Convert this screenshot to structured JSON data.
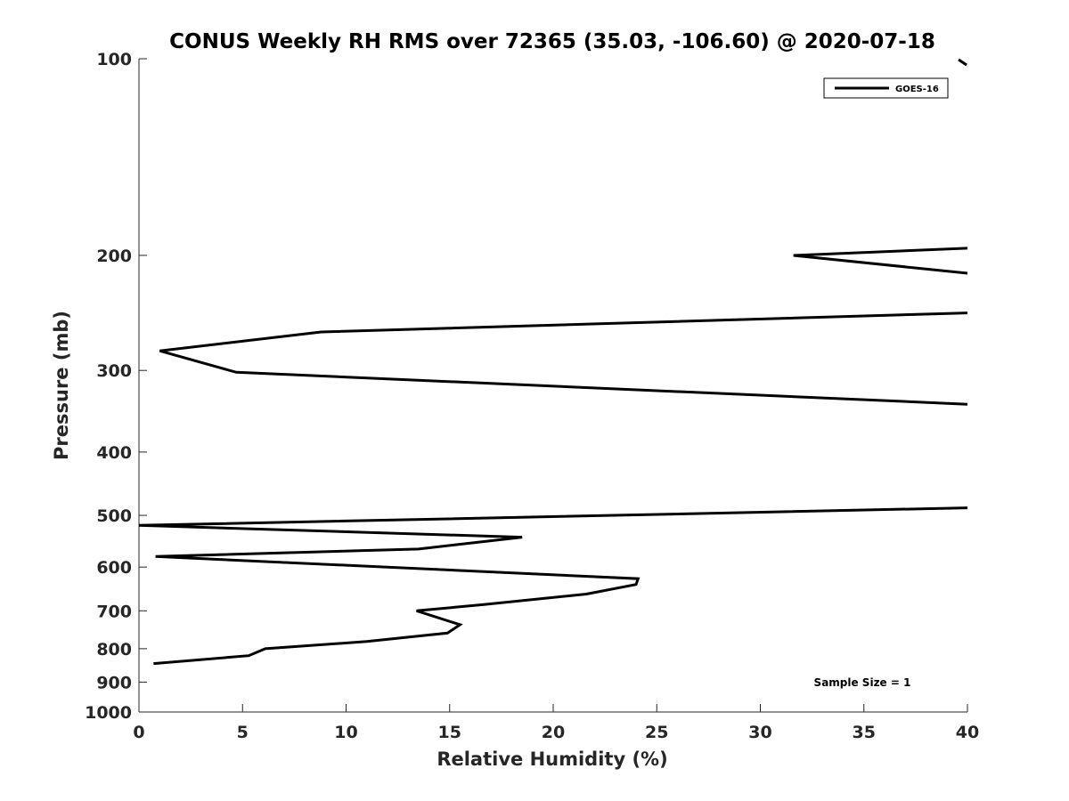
{
  "chart_data": {
    "type": "line",
    "title": "CONUS Weekly RH RMS over 72365 (35.03, -106.60) @ 2020-07-18",
    "xlabel": "Relative Humidity (%)",
    "ylabel": "Pressure (mb)",
    "xlim": [
      0,
      40
    ],
    "ylim": [
      100,
      1000
    ],
    "y_scale": "log",
    "y_reversed": true,
    "x_ticks": [
      0,
      5,
      10,
      15,
      20,
      25,
      30,
      35,
      40
    ],
    "y_ticks": [
      100,
      200,
      300,
      400,
      500,
      600,
      700,
      800,
      900,
      1000
    ],
    "grid": false,
    "legend_position": "top-right",
    "annotation": "Sample Size = 1",
    "series": [
      {
        "name": "GOES-16",
        "color": "#000000",
        "x": [
          40,
          31.6,
          40,
          null,
          40,
          8.8,
          1.0,
          4.7,
          40,
          null,
          40,
          0,
          18.5,
          13.5,
          0.8,
          24.1,
          24.0,
          21.6,
          16.6,
          13.4,
          15.5,
          14.9,
          11.0,
          6.1,
          5.3,
          0.7
        ],
        "y": [
          195,
          200,
          213,
          null,
          245,
          262,
          280,
          302,
          338,
          null,
          487,
          518,
          540,
          563,
          578,
          625,
          638,
          660,
          685,
          700,
          735,
          757,
          780,
          800,
          820,
          843
        ]
      }
    ]
  }
}
